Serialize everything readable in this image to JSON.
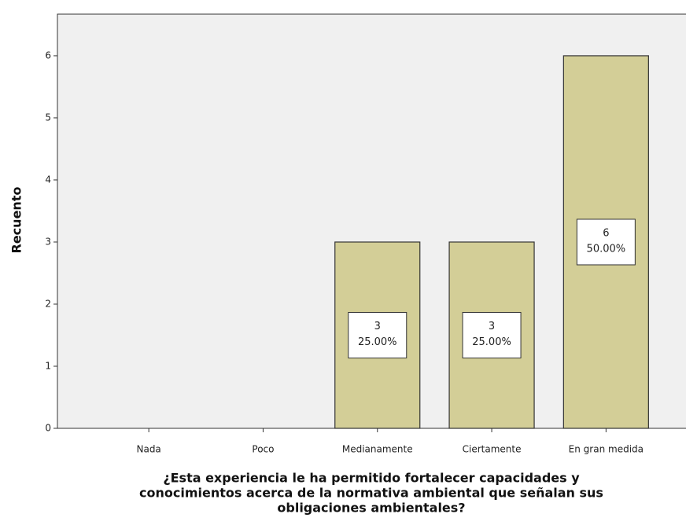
{
  "chart_data": {
    "type": "bar",
    "ylabel": "Recuento",
    "xlabel": [
      "¿Esta experiencia le ha permitido fortalecer capacidades y",
      "conocimientos acerca de la normativa ambiental que señalan sus",
      "obligaciones ambientales?"
    ],
    "categories": [
      "Nada",
      "Poco",
      "Medianamente",
      "Ciertamente",
      "En gran medida"
    ],
    "values": [
      0,
      0,
      3,
      3,
      6
    ],
    "percents": [
      null,
      null,
      25,
      25,
      50
    ],
    "percent_labels": [
      null,
      null,
      "25.00%",
      "25.00%",
      "50.00%"
    ],
    "color": "#d3ce97",
    "ylim": [
      0,
      6.67
    ],
    "yticks": [
      0,
      1,
      2,
      3,
      4,
      5,
      6
    ],
    "grid": false
  }
}
